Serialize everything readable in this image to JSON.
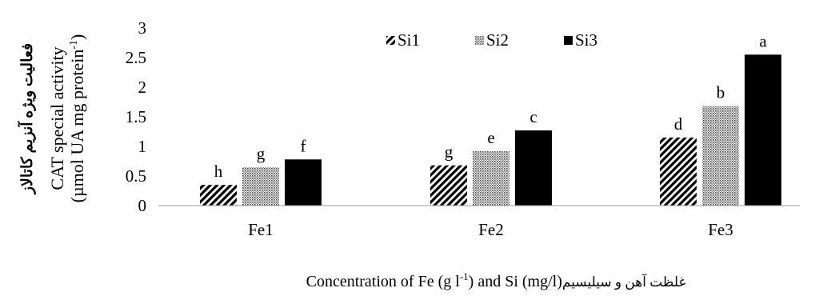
{
  "chart_data": {
    "type": "bar",
    "categories": [
      "Fe1",
      "Fe2",
      "Fe3"
    ],
    "series": [
      {
        "name": "Si1",
        "values": [
          0.35,
          0.68,
          1.15
        ],
        "letters": [
          "h",
          "g",
          "d"
        ],
        "pattern": "diagonal-hatch"
      },
      {
        "name": "Si2",
        "values": [
          0.65,
          0.92,
          1.68
        ],
        "letters": [
          "g",
          "e",
          "b"
        ],
        "pattern": "dots"
      },
      {
        "name": "Si3",
        "values": [
          0.78,
          1.27,
          2.55
        ],
        "letters": [
          "f",
          "c",
          "a"
        ],
        "pattern": "solid"
      }
    ],
    "yticks": [
      "0",
      "0.5",
      "1",
      "1.5",
      "2",
      "2.5",
      "3"
    ],
    "ylim": [
      0,
      3
    ],
    "ylabel_fa": "فعالیت ویژه آنزیم  کاتالاز",
    "ylabel_line1": "CAT special activity",
    "ylabel_line2_main": "(µmol UA mg protein",
    "ylabel_line2_sup": "-1",
    "ylabel_line2_end": ")",
    "xlabel_part1": "Concentration of Fe (g l",
    "xlabel_sup": "-1",
    "xlabel_part2": ") and Si (mg/l)",
    "xlabel_fa": "غلظت آهن و سیلیسیم",
    "legend_position": "top-center",
    "grid": false
  }
}
